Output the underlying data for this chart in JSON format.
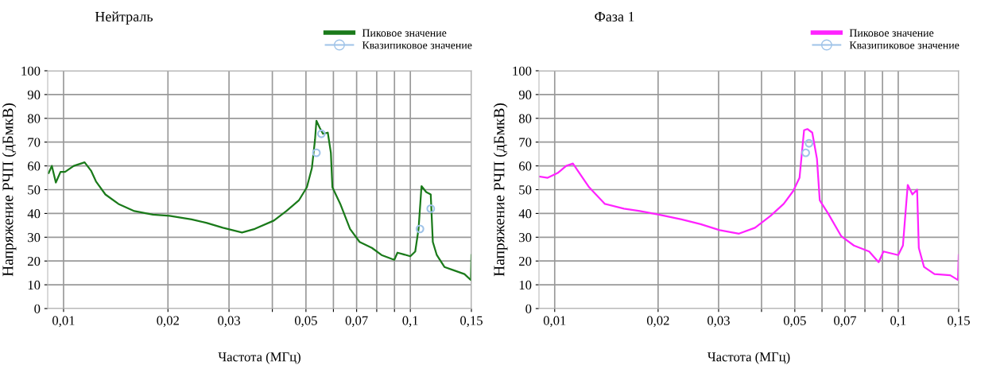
{
  "chart_data": [
    {
      "type": "line",
      "title": "Нейтраль",
      "xlabel": "Частота (МГц)",
      "ylabel": "Напряжение РЧП (дБмкВ)",
      "log": "x",
      "grid": true,
      "legend": "top right",
      "xlim": [
        0.009,
        0.15
      ],
      "xticks": [
        {
          "value": 0.01,
          "label": "0,01"
        },
        {
          "value": 0.02,
          "label": "0,02"
        },
        {
          "value": 0.03,
          "label": "0,03"
        },
        {
          "value": 0.04,
          "label": null
        },
        {
          "value": 0.05,
          "label": "0,05"
        },
        {
          "value": 0.06,
          "label": null
        },
        {
          "value": 0.07,
          "label": "0,07"
        },
        {
          "value": 0.08,
          "label": null
        },
        {
          "value": 0.09,
          "label": null
        },
        {
          "value": 0.1,
          "label": "0,1"
        },
        {
          "value": 0.15,
          "label": "0,15"
        }
      ],
      "ylim": [
        0,
        100
      ],
      "yticks": [
        0,
        10,
        20,
        30,
        40,
        50,
        60,
        70,
        80,
        90,
        100
      ],
      "series": [
        {
          "name": "Пиковое значение",
          "color": "#1a7a1a",
          "line_style": "solid",
          "marker": "none",
          "x": [
            0.00906,
            0.00925,
            0.0095,
            0.0098,
            0.0101,
            0.0107,
            0.0115,
            0.012,
            0.0124,
            0.0132,
            0.0144,
            0.016,
            0.0181,
            0.0202,
            0.0234,
            0.0259,
            0.0288,
            0.0327,
            0.0356,
            0.0404,
            0.0439,
            0.0477,
            0.0503,
            0.052,
            0.0531,
            0.0536,
            0.0548,
            0.056,
            0.0578,
            0.059,
            0.0596,
            0.0628,
            0.067,
            0.0714,
            0.0775,
            0.0826,
            0.0899,
            0.0918,
            0.1,
            0.1033,
            0.1056,
            0.1077,
            0.1111,
            0.1145,
            0.1161,
            0.1192,
            0.1254,
            0.1339,
            0.1432,
            0.1495,
            0.15
          ],
          "values": [
            57,
            60,
            53,
            57.5,
            57.5,
            60,
            61.5,
            58,
            53.5,
            48,
            44,
            41,
            39.5,
            39,
            37.5,
            36,
            34,
            32,
            33.5,
            37,
            41,
            45.5,
            51,
            59,
            71,
            79,
            76,
            73.5,
            74,
            65.5,
            51,
            44,
            33.5,
            28,
            25.5,
            22.5,
            20.5,
            23.5,
            22,
            24,
            33.5,
            51.5,
            49,
            48,
            28,
            22.5,
            17.5,
            16,
            14.5,
            12,
            22.5
          ]
        },
        {
          "name": "Квазипиковое значение",
          "type": "scatter",
          "color": "#9fc3e8",
          "marker": "circle",
          "x": [
            0.0536,
            0.0554,
            0.1066,
            0.1145
          ],
          "values": [
            65.5,
            73.5,
            33.5,
            42
          ]
        }
      ]
    },
    {
      "type": "line",
      "title": "Фаза 1",
      "xlabel": "Частота (МГц)",
      "ylabel": "Напряжение РЧП (дБмкВ)",
      "log": "x",
      "grid": true,
      "legend": "top right",
      "xlim": [
        0.009,
        0.15
      ],
      "xticks": [
        {
          "value": 0.01,
          "label": "0,01"
        },
        {
          "value": 0.02,
          "label": "0,02"
        },
        {
          "value": 0.03,
          "label": "0,03"
        },
        {
          "value": 0.04,
          "label": null
        },
        {
          "value": 0.05,
          "label": "0,05"
        },
        {
          "value": 0.06,
          "label": null
        },
        {
          "value": 0.07,
          "label": "0,07"
        },
        {
          "value": 0.08,
          "label": null
        },
        {
          "value": 0.09,
          "label": null
        },
        {
          "value": 0.1,
          "label": "0,1"
        },
        {
          "value": 0.15,
          "label": "0,15"
        }
      ],
      "ylim": [
        0,
        100
      ],
      "yticks": [
        0,
        10,
        20,
        30,
        40,
        50,
        60,
        70,
        80,
        90,
        100
      ],
      "series": [
        {
          "name": "Пиковое значение",
          "color": "#ff22ff",
          "line_style": "solid",
          "marker": "none",
          "x": [
            0.00906,
            0.00954,
            0.0102,
            0.0108,
            0.0113,
            0.0118,
            0.0126,
            0.014,
            0.0159,
            0.0177,
            0.0201,
            0.0234,
            0.0266,
            0.0302,
            0.0344,
            0.0383,
            0.0425,
            0.0464,
            0.0495,
            0.0516,
            0.0532,
            0.0544,
            0.0562,
            0.058,
            0.0591,
            0.0625,
            0.0682,
            0.0743,
            0.0823,
            0.0877,
            0.0906,
            0.1,
            0.1032,
            0.1055,
            0.1066,
            0.11,
            0.1135,
            0.1148,
            0.1189,
            0.1275,
            0.1417,
            0.1493,
            0.15
          ],
          "values": [
            55.5,
            55,
            57,
            60,
            61,
            57,
            51,
            44,
            42,
            41,
            39.5,
            37.5,
            35.5,
            33,
            31.5,
            34,
            39,
            44,
            49.5,
            55,
            75,
            75.5,
            74,
            63,
            45.5,
            40,
            30.5,
            26.5,
            24,
            19.5,
            24,
            22.5,
            26.5,
            44,
            52,
            48,
            50,
            25.5,
            17.5,
            14.5,
            14,
            12,
            22.5
          ]
        },
        {
          "name": "Квазипиковое значение",
          "type": "scatter",
          "color": "#9fc3e8",
          "marker": "circle",
          "x": [
            0.0538,
            0.055
          ],
          "values": [
            65.5,
            69.5
          ]
        }
      ]
    }
  ]
}
